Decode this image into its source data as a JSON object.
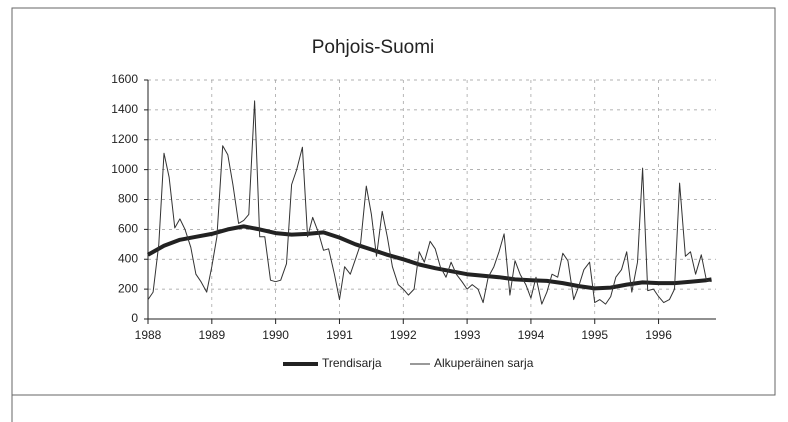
{
  "chart_data": {
    "type": "line",
    "title": "Pohjois-Suomi",
    "xlim": [
      1988,
      1996.9
    ],
    "xticks": [
      1988,
      1989,
      1990,
      1991,
      1992,
      1993,
      1994,
      1995,
      1996
    ],
    "ylim": [
      0,
      1600
    ],
    "yticks": [
      0,
      200,
      400,
      600,
      800,
      1000,
      1200,
      1400,
      1600
    ],
    "grid": true,
    "legend": "bottom",
    "series": [
      {
        "name": "Trendisarja",
        "color": "#222222",
        "x": [
          1988,
          1988.25,
          1988.5,
          1988.75,
          1989,
          1989.25,
          1989.5,
          1989.75,
          1990,
          1990.25,
          1990.5,
          1990.75,
          1991,
          1991.25,
          1991.5,
          1991.75,
          1992,
          1992.25,
          1992.5,
          1992.75,
          1993,
          1993.25,
          1993.5,
          1993.75,
          1994,
          1994.25,
          1994.5,
          1994.75,
          1995,
          1995.25,
          1995.5,
          1995.75,
          1996,
          1996.25,
          1996.5,
          1996.75,
          1996.83
        ],
        "values": [
          430,
          490,
          530,
          550,
          570,
          600,
          620,
          600,
          575,
          565,
          570,
          580,
          545,
          500,
          465,
          430,
          400,
          365,
          340,
          320,
          300,
          290,
          280,
          265,
          260,
          255,
          240,
          220,
          205,
          210,
          230,
          245,
          240,
          240,
          250,
          260,
          265
        ]
      },
      {
        "name": "Alkuperäinen sarja",
        "color": "#333333",
        "x": [
          1988,
          1988.08,
          1988.17,
          1988.25,
          1988.33,
          1988.42,
          1988.5,
          1988.58,
          1988.67,
          1988.75,
          1988.83,
          1988.92,
          1989,
          1989.08,
          1989.17,
          1989.25,
          1989.33,
          1989.42,
          1989.5,
          1989.58,
          1989.67,
          1989.75,
          1989.83,
          1989.92,
          1990,
          1990.08,
          1990.17,
          1990.25,
          1990.33,
          1990.42,
          1990.5,
          1990.58,
          1990.67,
          1990.75,
          1990.83,
          1990.92,
          1991,
          1991.08,
          1991.17,
          1991.25,
          1991.33,
          1991.42,
          1991.5,
          1991.58,
          1991.67,
          1991.75,
          1991.83,
          1991.92,
          1992,
          1992.08,
          1992.17,
          1992.25,
          1992.33,
          1992.42,
          1992.5,
          1992.58,
          1992.67,
          1992.75,
          1992.83,
          1992.92,
          1993,
          1993.08,
          1993.17,
          1993.25,
          1993.33,
          1993.42,
          1993.5,
          1993.58,
          1993.67,
          1993.75,
          1993.83,
          1993.92,
          1994,
          1994.08,
          1994.17,
          1994.25,
          1994.33,
          1994.42,
          1994.5,
          1994.58,
          1994.67,
          1994.75,
          1994.83,
          1994.92,
          1995,
          1995.08,
          1995.17,
          1995.25,
          1995.33,
          1995.42,
          1995.5,
          1995.58,
          1995.67,
          1995.75,
          1995.83,
          1995.92,
          1996,
          1996.08,
          1996.17,
          1996.25,
          1996.33,
          1996.42,
          1996.5,
          1996.58,
          1996.67,
          1996.75,
          1996.83
        ],
        "values": [
          130,
          180,
          500,
          1110,
          950,
          610,
          670,
          600,
          480,
          300,
          250,
          180,
          350,
          550,
          1160,
          1100,
          900,
          640,
          660,
          700,
          1460,
          550,
          550,
          260,
          250,
          260,
          370,
          900,
          1000,
          1150,
          550,
          680,
          580,
          460,
          470,
          300,
          130,
          350,
          300,
          400,
          500,
          890,
          700,
          420,
          720,
          550,
          350,
          230,
          200,
          160,
          200,
          450,
          380,
          520,
          470,
          350,
          280,
          380,
          300,
          250,
          200,
          230,
          200,
          110,
          280,
          350,
          450,
          570,
          160,
          390,
          300,
          230,
          140,
          280,
          100,
          180,
          300,
          280,
          440,
          390,
          130,
          220,
          330,
          380,
          110,
          130,
          100,
          150,
          280,
          330,
          450,
          180,
          380,
          1010,
          190,
          200,
          150,
          110,
          130,
          200,
          910,
          420,
          450,
          300,
          430,
          260,
          250
        ]
      }
    ]
  }
}
